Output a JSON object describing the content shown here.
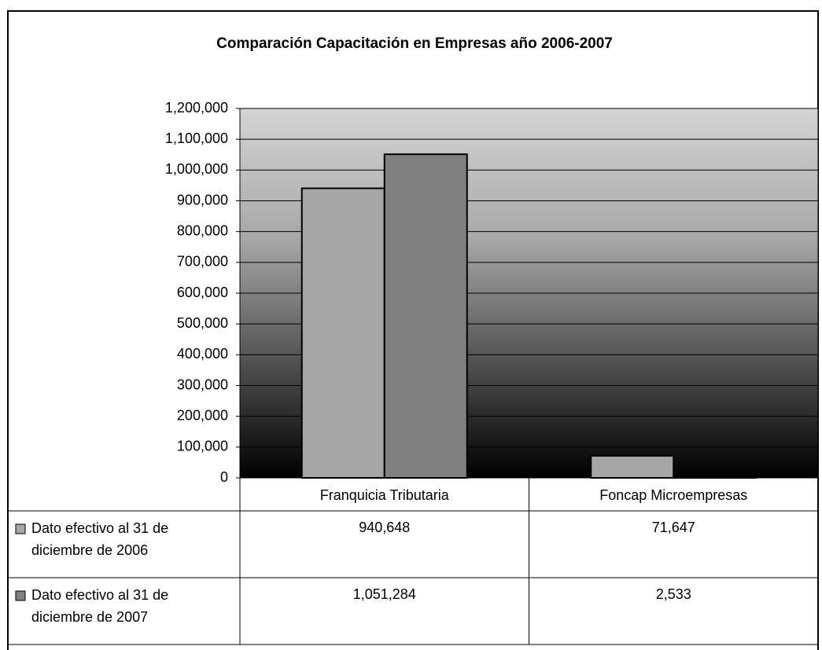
{
  "chart_data": {
    "type": "bar",
    "title": "Comparación Capacitación en Empresas año 2006-2007",
    "categories": [
      "Franquicia Tributaria",
      "Foncap Microempresas"
    ],
    "series": [
      {
        "name": "Dato efectivo al 31 de diciembre de 2006",
        "color": "#a6a6a6",
        "values": [
          940648,
          71647
        ],
        "value_labels": [
          "940,648",
          "71,647"
        ]
      },
      {
        "name": "Dato efectivo al 31 de diciembre de 2007",
        "color": "#808080",
        "values": [
          1051284,
          2533
        ],
        "value_labels": [
          "1,051,284",
          "2,533"
        ]
      }
    ],
    "ylim": [
      0,
      1200000
    ],
    "yticks": [
      0,
      {
        "value": 100000,
        "label": "100,000"
      },
      {
        "value": 200000,
        "label": "200,000"
      },
      {
        "value": 300000,
        "label": "300,000"
      },
      {
        "value": 400000,
        "label": "400,000"
      },
      {
        "value": 500000,
        "label": "500,000"
      },
      {
        "value": 600000,
        "label": "600,000"
      },
      {
        "value": 700000,
        "label": "700,000"
      },
      {
        "value": 800000,
        "label": "800,000"
      },
      {
        "value": 900000,
        "label": "900,000"
      },
      {
        "value": 1000000,
        "label": "1,000,000"
      },
      {
        "value": 1100000,
        "label": "1,100,000"
      },
      {
        "value": 1200000,
        "label": "1,200,000"
      }
    ],
    "grid": true
  }
}
